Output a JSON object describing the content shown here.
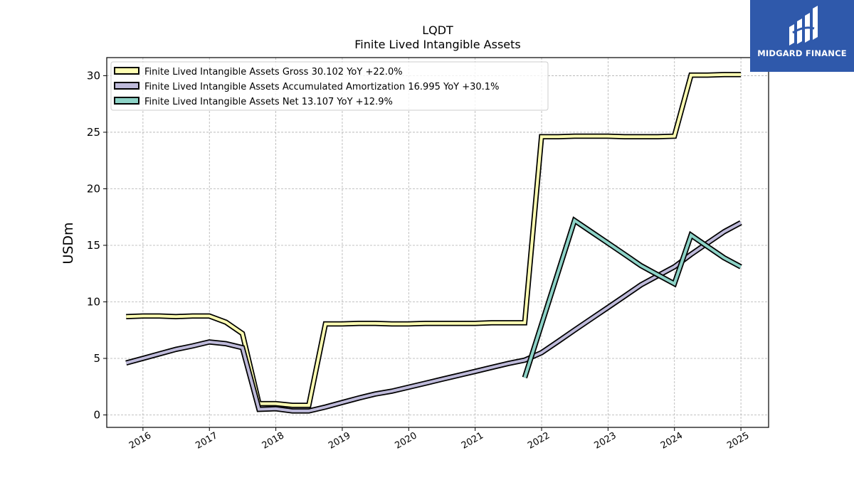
{
  "brand": {
    "name": "MIDGARD FINANCE",
    "background": "#2f59ab"
  },
  "chart_data": {
    "type": "line",
    "title": "LQDT",
    "subtitle": "Finite Lived Intangible Assets",
    "ylabel": "USDm",
    "xlabel": "",
    "ylim": [
      -1.1,
      31.6
    ],
    "yticks": [
      0,
      5,
      10,
      15,
      20,
      25,
      30
    ],
    "x_tick_labels": [
      "2016",
      "2017",
      "2018",
      "2019",
      "2020",
      "2021",
      "2022",
      "2023",
      "2024",
      "2025"
    ],
    "grid": true,
    "legend_position": "top-left",
    "series": [
      {
        "name": "Finite Lived Intangible Assets Gross",
        "legend_label": "Finite Lived Intangible Assets Gross  30.102 YoY +22.0%",
        "color": "#ffffb3",
        "points": [
          [
            "2015-09-30",
            8.7
          ],
          [
            "2015-12-31",
            8.75
          ],
          [
            "2016-03-31",
            8.75
          ],
          [
            "2016-06-30",
            8.7
          ],
          [
            "2016-09-30",
            8.75
          ],
          [
            "2016-12-31",
            8.75
          ],
          [
            "2017-03-31",
            8.2
          ],
          [
            "2017-06-30",
            7.2
          ],
          [
            "2017-09-30",
            1.0
          ],
          [
            "2017-12-31",
            1.0
          ],
          [
            "2018-03-31",
            0.85
          ],
          [
            "2018-06-30",
            0.85
          ],
          [
            "2018-09-30",
            8.05
          ],
          [
            "2018-12-31",
            8.05
          ],
          [
            "2019-03-31",
            8.1
          ],
          [
            "2019-06-30",
            8.1
          ],
          [
            "2019-09-30",
            8.05
          ],
          [
            "2019-12-31",
            8.05
          ],
          [
            "2020-03-31",
            8.1
          ],
          [
            "2020-06-30",
            8.1
          ],
          [
            "2020-09-30",
            8.1
          ],
          [
            "2020-12-31",
            8.1
          ],
          [
            "2021-03-31",
            8.15
          ],
          [
            "2021-06-30",
            8.15
          ],
          [
            "2021-09-30",
            8.15
          ],
          [
            "2021-12-31",
            24.6
          ],
          [
            "2022-03-31",
            24.6
          ],
          [
            "2022-06-30",
            24.65
          ],
          [
            "2022-09-30",
            24.65
          ],
          [
            "2022-12-31",
            24.65
          ],
          [
            "2023-03-31",
            24.6
          ],
          [
            "2023-06-30",
            24.6
          ],
          [
            "2023-09-30",
            24.6
          ],
          [
            "2023-12-31",
            24.65
          ],
          [
            "2024-03-31",
            30.05
          ],
          [
            "2024-06-30",
            30.05
          ],
          [
            "2024-09-30",
            30.1
          ],
          [
            "2024-12-31",
            30.1
          ]
        ]
      },
      {
        "name": "Finite Lived Intangible Assets Accumulated Amortization",
        "legend_label": "Finite Lived Intangible Assets Accumulated Amortization  16.995 YoY +30.1%",
        "color": "#bebada",
        "points": [
          [
            "2015-09-30",
            4.6
          ],
          [
            "2015-12-31",
            5.0
          ],
          [
            "2016-03-31",
            5.4
          ],
          [
            "2016-06-30",
            5.8
          ],
          [
            "2016-09-30",
            6.1
          ],
          [
            "2016-12-31",
            6.45
          ],
          [
            "2017-03-31",
            6.3
          ],
          [
            "2017-06-30",
            5.95
          ],
          [
            "2017-09-30",
            0.5
          ],
          [
            "2017-12-31",
            0.55
          ],
          [
            "2018-03-31",
            0.35
          ],
          [
            "2018-06-30",
            0.35
          ],
          [
            "2018-09-30",
            0.7
          ],
          [
            "2018-12-31",
            1.1
          ],
          [
            "2019-03-31",
            1.5
          ],
          [
            "2019-06-30",
            1.85
          ],
          [
            "2019-09-30",
            2.1
          ],
          [
            "2019-12-31",
            2.45
          ],
          [
            "2020-03-31",
            2.8
          ],
          [
            "2020-06-30",
            3.15
          ],
          [
            "2020-09-30",
            3.5
          ],
          [
            "2020-12-31",
            3.85
          ],
          [
            "2021-03-31",
            4.2
          ],
          [
            "2021-06-30",
            4.55
          ],
          [
            "2021-09-30",
            4.85
          ],
          [
            "2021-12-31",
            5.5
          ],
          [
            "2022-03-31",
            6.5
          ],
          [
            "2022-06-30",
            7.5
          ],
          [
            "2022-09-30",
            8.5
          ],
          [
            "2022-12-31",
            9.5
          ],
          [
            "2023-03-31",
            10.5
          ],
          [
            "2023-06-30",
            11.5
          ],
          [
            "2023-09-30",
            12.3
          ],
          [
            "2023-12-31",
            13.1
          ],
          [
            "2024-03-31",
            14.2
          ],
          [
            "2024-06-30",
            15.2
          ],
          [
            "2024-09-30",
            16.2
          ],
          [
            "2024-12-31",
            17.0
          ]
        ]
      },
      {
        "name": "Finite Lived Intangible Assets Net",
        "legend_label": "Finite Lived Intangible Assets Net  13.107 YoY +12.9%",
        "color": "#8dd3c7",
        "points": [
          [
            "2021-09-30",
            3.3
          ],
          [
            "2022-06-30",
            17.2
          ],
          [
            "2022-09-30",
            16.2
          ],
          [
            "2022-12-31",
            15.2
          ],
          [
            "2023-03-31",
            14.2
          ],
          [
            "2023-06-30",
            13.2
          ],
          [
            "2023-09-30",
            12.4
          ],
          [
            "2023-12-31",
            11.6
          ],
          [
            "2024-03-31",
            15.9
          ],
          [
            "2024-06-30",
            14.9
          ],
          [
            "2024-09-30",
            13.9
          ],
          [
            "2024-12-31",
            13.1
          ]
        ]
      }
    ]
  }
}
